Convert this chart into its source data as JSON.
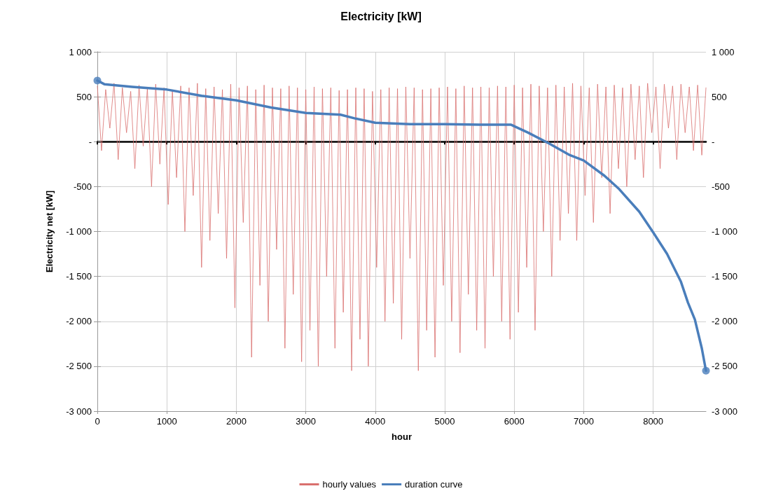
{
  "chart_data": {
    "type": "line",
    "title": "Electricity [kW]",
    "xlabel": "hour",
    "ylabel": "Electricity net [kW]",
    "xlim": [
      0,
      8760
    ],
    "xticks": [
      0,
      1000,
      2000,
      3000,
      4000,
      5000,
      6000,
      7000,
      8000
    ],
    "ylim": [
      -3000,
      1000
    ],
    "yticks": [
      {
        "value": 1000,
        "label": "1 000"
      },
      {
        "value": 500,
        "label": "500"
      },
      {
        "value": 0,
        "label": "-"
      },
      {
        "value": -500,
        "label": "-500"
      },
      {
        "value": -1000,
        "label": "-1 000"
      },
      {
        "value": -1500,
        "label": "-1 500"
      },
      {
        "value": -2000,
        "label": "-2 000"
      },
      {
        "value": -2500,
        "label": "-2 500"
      },
      {
        "value": -3000,
        "label": "-3 000"
      }
    ],
    "y2lim": [
      -3000,
      1000
    ],
    "y2ticks": [
      {
        "value": 1000,
        "label": "1 000"
      },
      {
        "value": 500,
        "label": "500"
      },
      {
        "value": 0,
        "label": "-"
      },
      {
        "value": -500,
        "label": "-500"
      },
      {
        "value": -1000,
        "label": "-1 000"
      },
      {
        "value": -1500,
        "label": "-1 500"
      },
      {
        "value": -2000,
        "label": "-2 000"
      },
      {
        "value": -2500,
        "label": "-2 500"
      },
      {
        "value": -3000,
        "label": "-3 000"
      }
    ],
    "grid": true,
    "legend": "bottom",
    "series": [
      {
        "name": "hourly values",
        "color": "#d9706e",
        "marker": "none",
        "x": [
          0,
          60,
          120,
          180,
          240,
          300,
          360,
          420,
          480,
          540,
          600,
          660,
          720,
          780,
          840,
          900,
          960,
          1020,
          1080,
          1140,
          1200,
          1260,
          1320,
          1380,
          1440,
          1500,
          1560,
          1620,
          1680,
          1740,
          1800,
          1860,
          1920,
          1980,
          2040,
          2100,
          2160,
          2220,
          2280,
          2340,
          2400,
          2460,
          2520,
          2580,
          2640,
          2700,
          2760,
          2820,
          2880,
          2940,
          3000,
          3060,
          3120,
          3180,
          3240,
          3300,
          3360,
          3420,
          3480,
          3540,
          3600,
          3660,
          3720,
          3780,
          3840,
          3900,
          3960,
          4020,
          4080,
          4140,
          4200,
          4260,
          4320,
          4380,
          4440,
          4500,
          4560,
          4620,
          4680,
          4740,
          4800,
          4860,
          4920,
          4980,
          5040,
          5100,
          5160,
          5220,
          5280,
          5340,
          5400,
          5460,
          5520,
          5580,
          5640,
          5700,
          5760,
          5820,
          5880,
          5940,
          6000,
          6060,
          6120,
          6180,
          6240,
          6300,
          6360,
          6420,
          6480,
          6540,
          6600,
          6660,
          6720,
          6780,
          6840,
          6900,
          6960,
          7020,
          7080,
          7140,
          7200,
          7260,
          7320,
          7380,
          7440,
          7500,
          7560,
          7620,
          7680,
          7740,
          7800,
          7860,
          7920,
          7980,
          8040,
          8100,
          8160,
          8220,
          8280,
          8340,
          8400,
          8460,
          8520,
          8580,
          8640,
          8700,
          8760
        ],
        "values": [
          620,
          -100,
          580,
          150,
          650,
          -200,
          600,
          100,
          560,
          -300,
          630,
          -50,
          590,
          -500,
          640,
          -250,
          600,
          -700,
          570,
          -400,
          620,
          -1000,
          600,
          -600,
          650,
          -1400,
          590,
          -1100,
          610,
          -800,
          580,
          -1300,
          640,
          -1850,
          600,
          -900,
          620,
          -2400,
          580,
          -1600,
          630,
          -2000,
          600,
          -1200,
          590,
          -2300,
          620,
          -1700,
          600,
          -2450,
          580,
          -2100,
          610,
          -2500,
          590,
          -1500,
          600,
          -2300,
          570,
          -1900,
          580,
          -2550,
          600,
          -2200,
          590,
          -2500,
          560,
          -1400,
          580,
          -2000,
          600,
          -1800,
          590,
          -2200,
          610,
          -1300,
          600,
          -2550,
          580,
          -2100,
          590,
          -2400,
          600,
          -1600,
          610,
          -2000,
          590,
          -2350,
          620,
          -1700,
          600,
          -2100,
          610,
          -2300,
          600,
          -1500,
          620,
          -2000,
          610,
          -2200,
          630,
          -1900,
          600,
          -1400,
          640,
          -2100,
          620,
          -1000,
          600,
          -1500,
          630,
          -1100,
          610,
          -800,
          650,
          -1100,
          620,
          -600,
          600,
          -900,
          640,
          -400,
          610,
          -800,
          630,
          -300,
          600,
          -500,
          640,
          -200,
          620,
          -400,
          650,
          100,
          610,
          -300,
          640,
          150,
          620,
          -200,
          640,
          100,
          610,
          -100,
          630,
          -150,
          600
        ]
      },
      {
        "type": "scatter",
        "color": "#4a7ebb",
        "marker": "circle",
        "x": [
          0,
          8760
        ],
        "values": [
          680,
          -2550
        ]
      },
      {
        "name": "duration curve",
        "color": "#4a7ebb",
        "marker": "none",
        "x": [
          0,
          100,
          500,
          1000,
          1500,
          2000,
          2500,
          3000,
          3500,
          3700,
          4000,
          4500,
          5000,
          5500,
          5950,
          6200,
          6500,
          6800,
          7000,
          7300,
          7500,
          7800,
          8000,
          8200,
          8400,
          8500,
          8600,
          8700,
          8760
        ],
        "values": [
          680,
          640,
          610,
          580,
          510,
          460,
          380,
          320,
          300,
          260,
          210,
          195,
          195,
          190,
          190,
          100,
          -20,
          -150,
          -210,
          -380,
          -520,
          -780,
          -1010,
          -1250,
          -1560,
          -1790,
          -1980,
          -2300,
          -2550
        ]
      }
    ]
  }
}
